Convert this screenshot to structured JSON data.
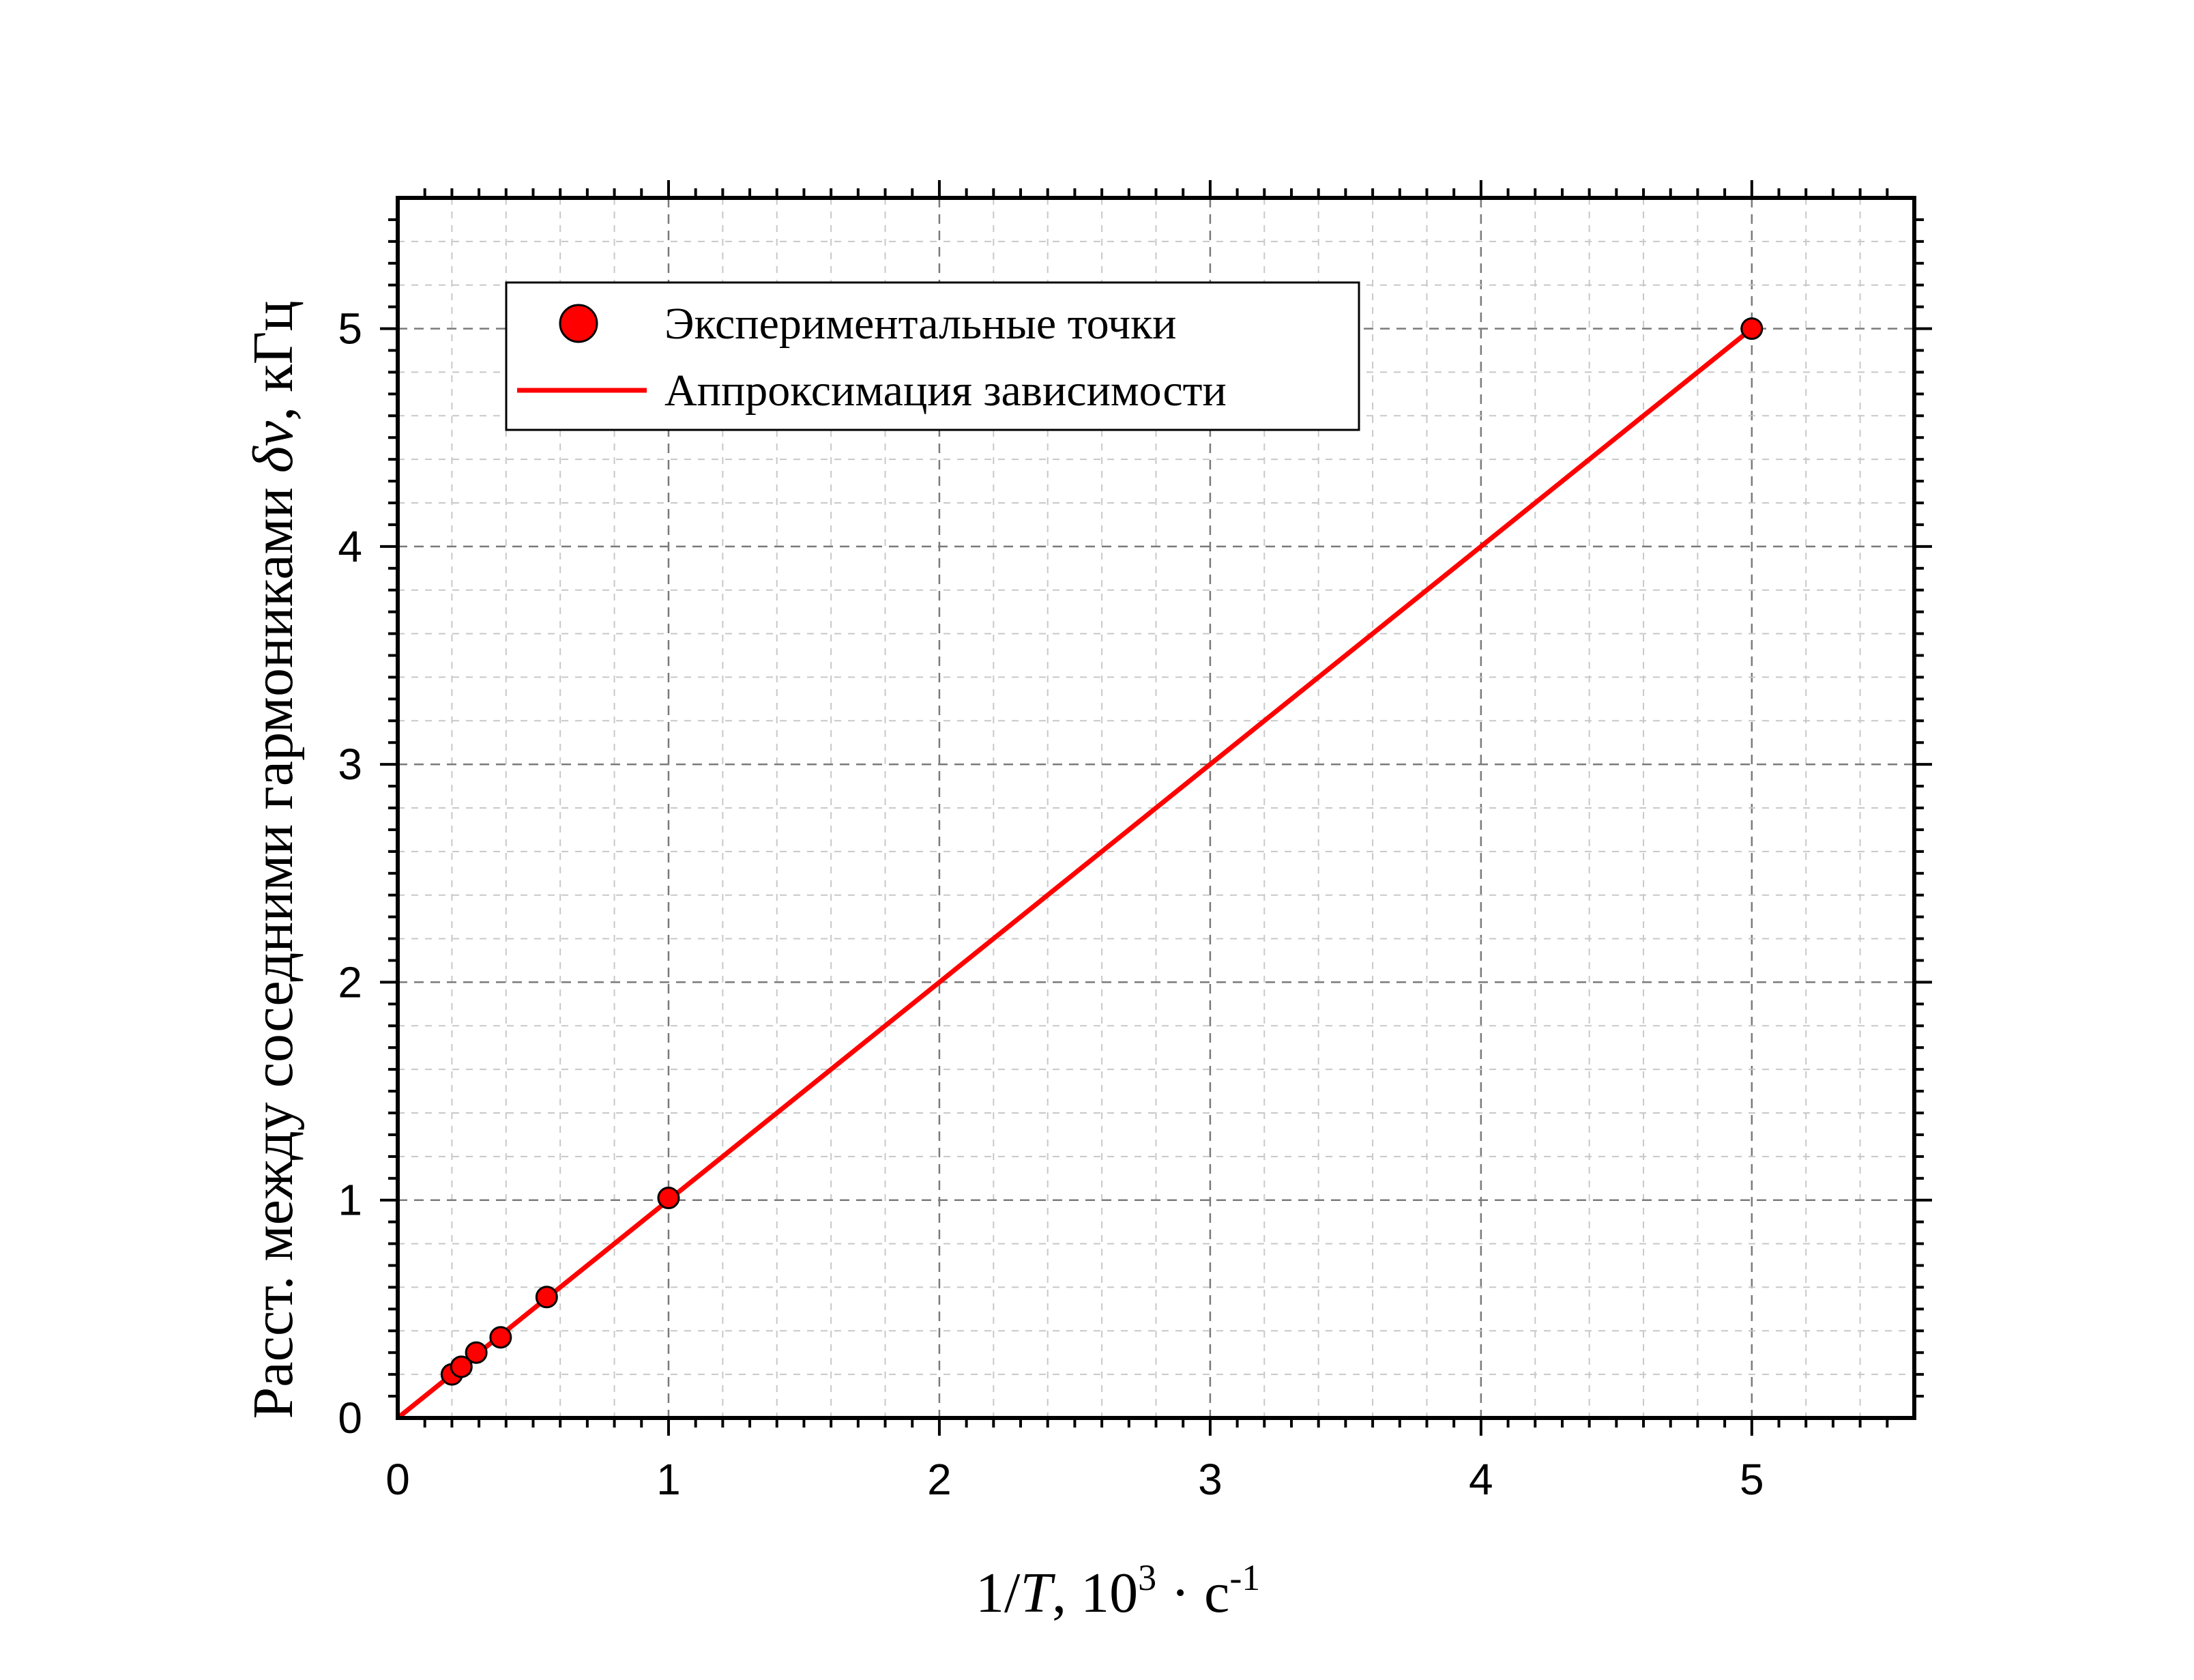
{
  "chart_data": {
    "type": "scatter",
    "xlabel": {
      "prefix": "1/",
      "var": "T",
      "after_var": ", 10",
      "exp": "3",
      "unit": " · с",
      "unit_exp": "-1"
    },
    "ylabel": {
      "text": "Расст. между соседними гармониками ",
      "symbol": "δν",
      "unit": ", кГц"
    },
    "xlim": [
      0,
      5.6
    ],
    "ylim": [
      0,
      5.6
    ],
    "xticks": [
      0,
      1,
      2,
      3,
      4,
      5
    ],
    "yticks": [
      0,
      1,
      2,
      3,
      4,
      5
    ],
    "x_minor_step": 0.2,
    "y_minor_step": 0.2,
    "grid": true,
    "legend_position": "top-left",
    "series": [
      {
        "name": "Экспериментальные точки",
        "kind": "scatter",
        "color": "#ff0000",
        "edge_color": "#000000",
        "points": [
          {
            "x": 0.2,
            "y": 0.2
          },
          {
            "x": 0.235,
            "y": 0.235
          },
          {
            "x": 0.29,
            "y": 0.3
          },
          {
            "x": 0.38,
            "y": 0.37
          },
          {
            "x": 0.55,
            "y": 0.555
          },
          {
            "x": 1.0,
            "y": 1.01
          },
          {
            "x": 5.0,
            "y": 5.0
          }
        ]
      },
      {
        "name": "Аппроксимация зависимости",
        "kind": "line",
        "color": "#ff0000",
        "points": [
          {
            "x": 0,
            "y": 0
          },
          {
            "x": 5.0,
            "y": 5.0
          }
        ]
      }
    ]
  }
}
